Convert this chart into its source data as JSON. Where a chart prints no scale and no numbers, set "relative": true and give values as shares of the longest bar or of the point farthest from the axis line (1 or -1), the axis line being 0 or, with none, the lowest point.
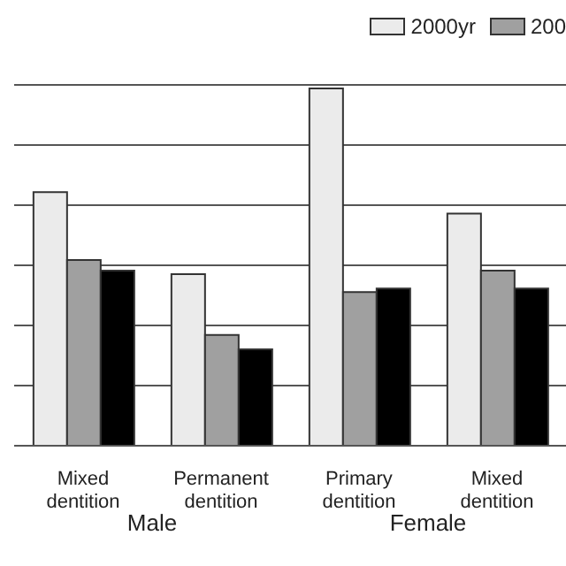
{
  "chart_data": {
    "type": "bar",
    "relative": true,
    "categories": [
      "Mixed dentition",
      "Permanent dentition",
      "Primary dentition",
      "Mixed dentition"
    ],
    "series": [
      {
        "name": "2000yr",
        "color": "#ebebeb",
        "values": [
          0.71,
          0.48,
          1,
          0.65
        ]
      },
      {
        "name": "200",
        "color": "#a0a0a0",
        "values": [
          0.52,
          0.31,
          0.43,
          0.49
        ]
      },
      {
        "color": "#000000",
        "values": [
          0.49,
          0.27,
          0.44,
          0.44
        ]
      }
    ],
    "annotations": [
      "Male",
      "Female"
    ],
    "grid": true,
    "legend": "top right"
  }
}
